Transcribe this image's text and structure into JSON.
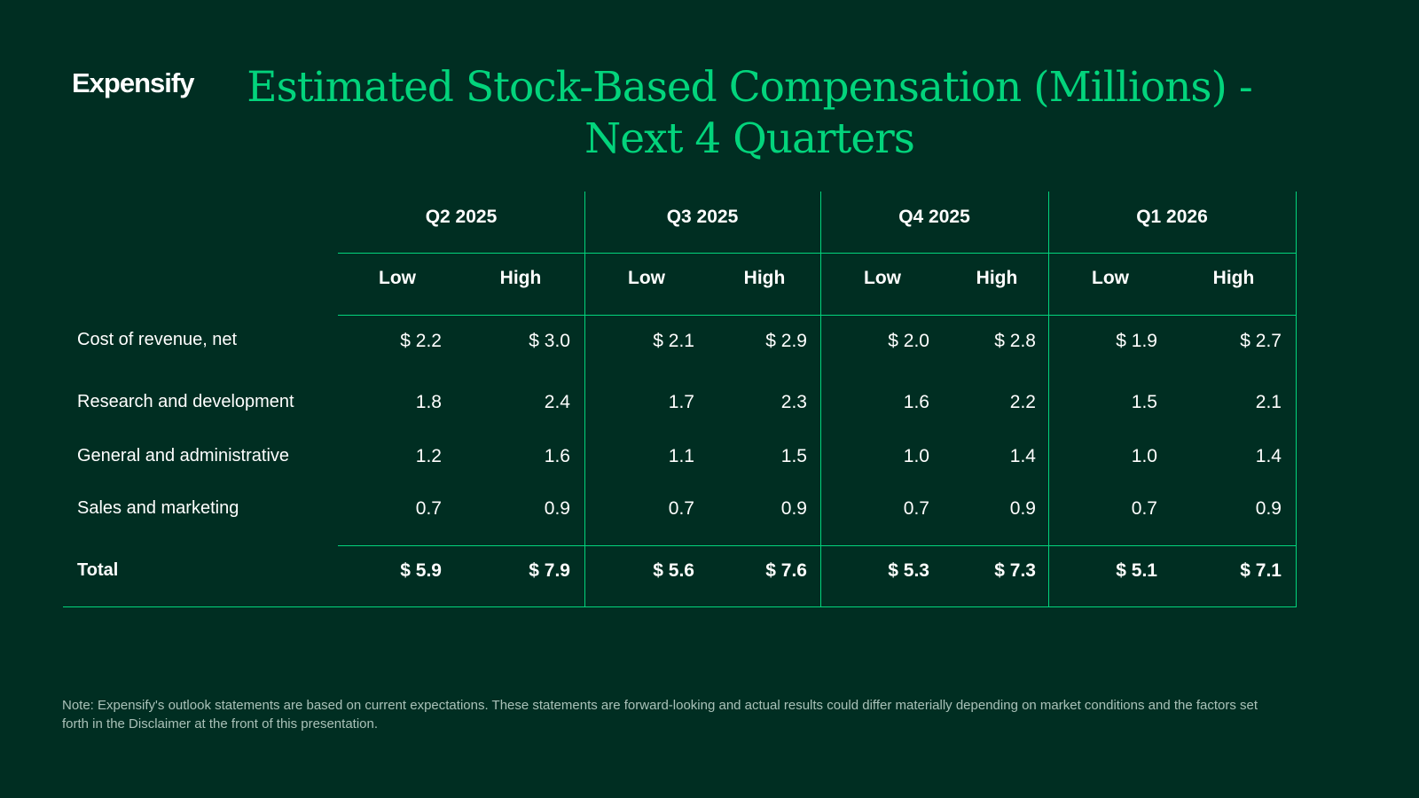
{
  "brand": {
    "logo_text": "Expensify"
  },
  "title": {
    "line1": "Estimated Stock-Based Compensation (Millions) -",
    "line2": "Next 4 Quarters"
  },
  "table": {
    "quarters": [
      "Q2 2025",
      "Q3 2025",
      "Q4 2025",
      "Q1 2026"
    ],
    "sub_headers": [
      "Low",
      "High",
      "Low",
      "High",
      "Low",
      "High",
      "Low",
      "High"
    ],
    "rows": [
      {
        "label": "Cost of revenue, net",
        "values": [
          "$ 2.2",
          "$ 3.0",
          "$ 2.1",
          "$ 2.9",
          "$ 2.0",
          "$ 2.8",
          "$ 1.9",
          "$ 2.7"
        ]
      },
      {
        "label": "Research and development",
        "values": [
          "1.8",
          "2.4",
          "1.7",
          "2.3",
          "1.6",
          "2.2",
          "1.5",
          "2.1"
        ]
      },
      {
        "label": "General and administrative",
        "values": [
          "1.2",
          "1.6",
          "1.1",
          "1.5",
          "1.0",
          "1.4",
          "1.0",
          "1.4"
        ]
      },
      {
        "label": "Sales and marketing",
        "values": [
          "0.7",
          "0.9",
          "0.7",
          "0.9",
          "0.7",
          "0.9",
          "0.7",
          "0.9"
        ]
      }
    ],
    "total": {
      "label": "Total",
      "values": [
        "$ 5.9",
        "$ 7.9",
        "$ 5.6",
        "$ 7.6",
        "$ 5.3",
        "$ 7.3",
        "$ 5.1",
        "$ 7.1"
      ]
    }
  },
  "note": "Note: Expensify's outlook statements are based on current expectations. These statements are forward-looking and actual results could differ materially depending on market conditions and the factors set forth in the Disclaimer at the front of this presentation.",
  "colors": {
    "background": "#002e22",
    "accent": "#03d47c",
    "text": "#ffffff",
    "note_text": "#a9c1b8"
  }
}
